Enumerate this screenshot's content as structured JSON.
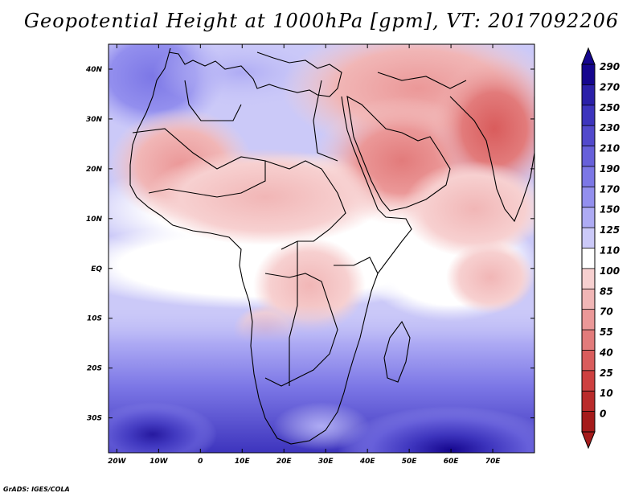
{
  "title": "Geopotential Height at 1000hPa [gpm], VT: 2017092206",
  "credit": "GrADS: IGES/COLA",
  "map": {
    "lon_range": [
      -22,
      80
    ],
    "lat_range": [
      -37,
      45
    ],
    "x_ticks": [
      {
        "lon": -20,
        "label": "20W"
      },
      {
        "lon": -10,
        "label": "10W"
      },
      {
        "lon": 0,
        "label": "0"
      },
      {
        "lon": 10,
        "label": "10E"
      },
      {
        "lon": 20,
        "label": "20E"
      },
      {
        "lon": 30,
        "label": "30E"
      },
      {
        "lon": 40,
        "label": "40E"
      },
      {
        "lon": 50,
        "label": "50E"
      },
      {
        "lon": 60,
        "label": "60E"
      },
      {
        "lon": 70,
        "label": "70E"
      }
    ],
    "y_ticks": [
      {
        "lat": 40,
        "label": "40N"
      },
      {
        "lat": 30,
        "label": "30N"
      },
      {
        "lat": 20,
        "label": "20N"
      },
      {
        "lat": 10,
        "label": "10N"
      },
      {
        "lat": 0,
        "label": "EQ"
      },
      {
        "lat": -10,
        "label": "10S"
      },
      {
        "lat": -20,
        "label": "20S"
      },
      {
        "lat": -30,
        "label": "30S"
      }
    ]
  },
  "colorbar": {
    "levels": [
      "290",
      "270",
      "250",
      "230",
      "210",
      "190",
      "170",
      "150",
      "125",
      "110",
      "100",
      "85",
      "70",
      "55",
      "40",
      "25",
      "10",
      "0"
    ],
    "colors": [
      "#15068e",
      "#2b20a8",
      "#3d34bd",
      "#5249cc",
      "#6760da",
      "#7c77e6",
      "#938fee",
      "#aeabf4",
      "#cbc9f8",
      "#ffffff",
      "#f7d0d0",
      "#f1b6b6",
      "#eb9898",
      "#e27b7b",
      "#d95c5c",
      "#cd4040",
      "#b92b2b",
      "#a51b1b"
    ]
  }
}
